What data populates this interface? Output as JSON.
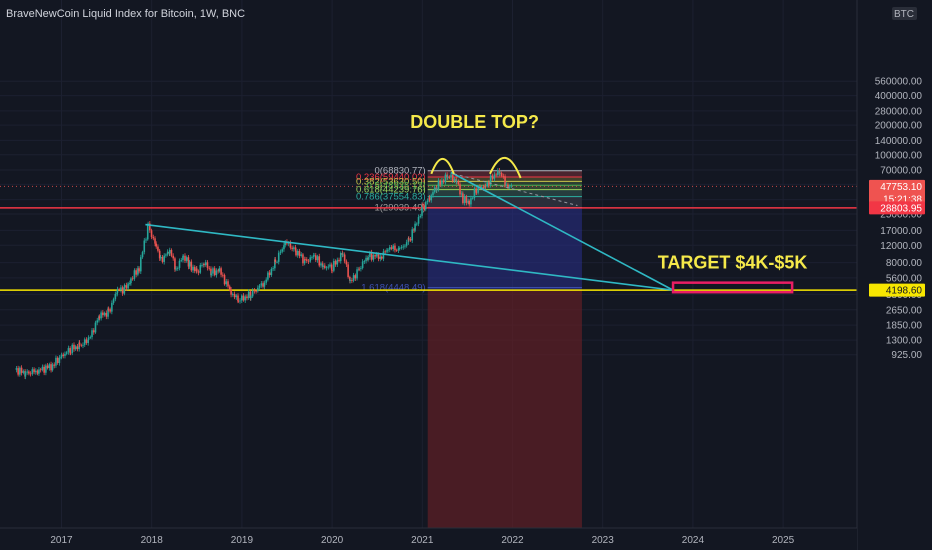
{
  "chart_data": {
    "type": "candlestick",
    "title": "BraveNewCoin Liquid Index for Bitcoin, 1W, BNC",
    "currency": "BTC",
    "y_scale": "log",
    "ylim": [
      820,
      560000
    ],
    "x_tick_labels": [
      "2017",
      "2018",
      "2019",
      "2020",
      "2021",
      "2022",
      "2023",
      "2024",
      "2025"
    ],
    "y_tick_labels": [
      {
        "label": "560000.00",
        "value": 560000
      },
      {
        "label": "400000.00",
        "value": 400000
      },
      {
        "label": "280000.00",
        "value": 280000
      },
      {
        "label": "200000.00",
        "value": 200000
      },
      {
        "label": "140000.00",
        "value": 140000
      },
      {
        "label": "100000.00",
        "value": 100000
      },
      {
        "label": "70000.00",
        "value": 70000
      },
      {
        "label": "50000.00",
        "value": 50000
      },
      {
        "label": "35000.00",
        "value": 35000
      },
      {
        "label": "25000.00",
        "value": 25000
      },
      {
        "label": "17000.00",
        "value": 17000
      },
      {
        "label": "12000.00",
        "value": 12000
      },
      {
        "label": "8000.00",
        "value": 8000
      },
      {
        "label": "5600.00",
        "value": 5600
      },
      {
        "label": "3800.00",
        "value": 3800
      },
      {
        "label": "2650.00",
        "value": 2650
      },
      {
        "label": "1850.00",
        "value": 1850
      },
      {
        "label": "1300.00",
        "value": 1300
      },
      {
        "label": "925.00",
        "value": 925
      }
    ],
    "price_label": {
      "value": "47753.10",
      "countdown": "15:21:38",
      "price": 47753.1,
      "color": "#ef5350"
    },
    "horizontal_levels": [
      {
        "label": "28803.95",
        "value": 28803.95,
        "color": "#f23645"
      },
      {
        "label": "4198.60",
        "value": 4198.6,
        "color": "#f7e600"
      }
    ],
    "fib_levels": [
      {
        "label": "0(68830.77)",
        "value": 68830.77,
        "color": "#b2b5be"
      },
      {
        "label": "0.236(59440.02)",
        "value": 59440.02,
        "color": "#f23645"
      },
      {
        "label": "0.382(53630.50)",
        "value": 53630.5,
        "color": "#c9c54a"
      },
      {
        "label": "0.5(48935.13)",
        "value": 48935.13,
        "color": "#4caf50"
      },
      {
        "label": "0.618(44239.76)",
        "value": 44239.76,
        "color": "#9ad35e"
      },
      {
        "label": "0.786(37554.83)",
        "value": 37554.83,
        "color": "#2bb0a3"
      },
      {
        "label": "1(29039.49)",
        "value": 29039.49,
        "color": "#9e9e9e"
      },
      {
        "label": "1.618(4448.49)",
        "value": 4448.49,
        "color": "#3f51b5"
      }
    ],
    "annotations": [
      {
        "text": "DOUBLE TOP?",
        "color": "#f5e94a"
      },
      {
        "text": "TARGET $4K-$5K",
        "color": "#f5e94a"
      }
    ],
    "series": [
      {
        "points": [
          [
            2016.5,
            650
          ],
          [
            2016.6,
            600
          ],
          [
            2016.75,
            640
          ],
          [
            2016.9,
            720
          ],
          [
            2017.0,
            900
          ],
          [
            2017.1,
            1050
          ],
          [
            2017.2,
            1150
          ],
          [
            2017.3,
            1300
          ],
          [
            2017.42,
            2300
          ],
          [
            2017.52,
            2500
          ],
          [
            2017.62,
            4200
          ],
          [
            2017.7,
            4300
          ],
          [
            2017.77,
            5400
          ],
          [
            2017.86,
            7200
          ],
          [
            2017.96,
            19000
          ],
          [
            2018.05,
            11500
          ],
          [
            2018.1,
            8500
          ],
          [
            2018.2,
            10500
          ],
          [
            2018.27,
            7000
          ],
          [
            2018.35,
            9200
          ],
          [
            2018.42,
            7600
          ],
          [
            2018.5,
            6400
          ],
          [
            2018.58,
            8000
          ],
          [
            2018.66,
            6400
          ],
          [
            2018.75,
            6600
          ],
          [
            2018.88,
            4000
          ],
          [
            2018.96,
            3300
          ],
          [
            2019.1,
            3800
          ],
          [
            2019.25,
            5100
          ],
          [
            2019.37,
            8000
          ],
          [
            2019.48,
            13000
          ],
          [
            2019.6,
            10500
          ],
          [
            2019.7,
            8200
          ],
          [
            2019.8,
            9300
          ],
          [
            2019.9,
            7300
          ],
          [
            2020.0,
            7200
          ],
          [
            2020.12,
            9900
          ],
          [
            2020.2,
            5000
          ],
          [
            2020.3,
            7000
          ],
          [
            2020.4,
            9400
          ],
          [
            2020.55,
            9200
          ],
          [
            2020.62,
            11500
          ],
          [
            2020.75,
            10800
          ],
          [
            2020.85,
            13500
          ],
          [
            2020.92,
            18500
          ],
          [
            2021.0,
            29000
          ],
          [
            2021.08,
            36000
          ],
          [
            2021.16,
            48000
          ],
          [
            2021.28,
            61000
          ],
          [
            2021.38,
            55000
          ],
          [
            2021.45,
            35000
          ],
          [
            2021.52,
            33000
          ],
          [
            2021.6,
            45000
          ],
          [
            2021.7,
            48000
          ],
          [
            2021.78,
            61000
          ],
          [
            2021.86,
            67000
          ],
          [
            2021.93,
            49000
          ],
          [
            2022.0,
            47753
          ]
        ]
      }
    ]
  }
}
